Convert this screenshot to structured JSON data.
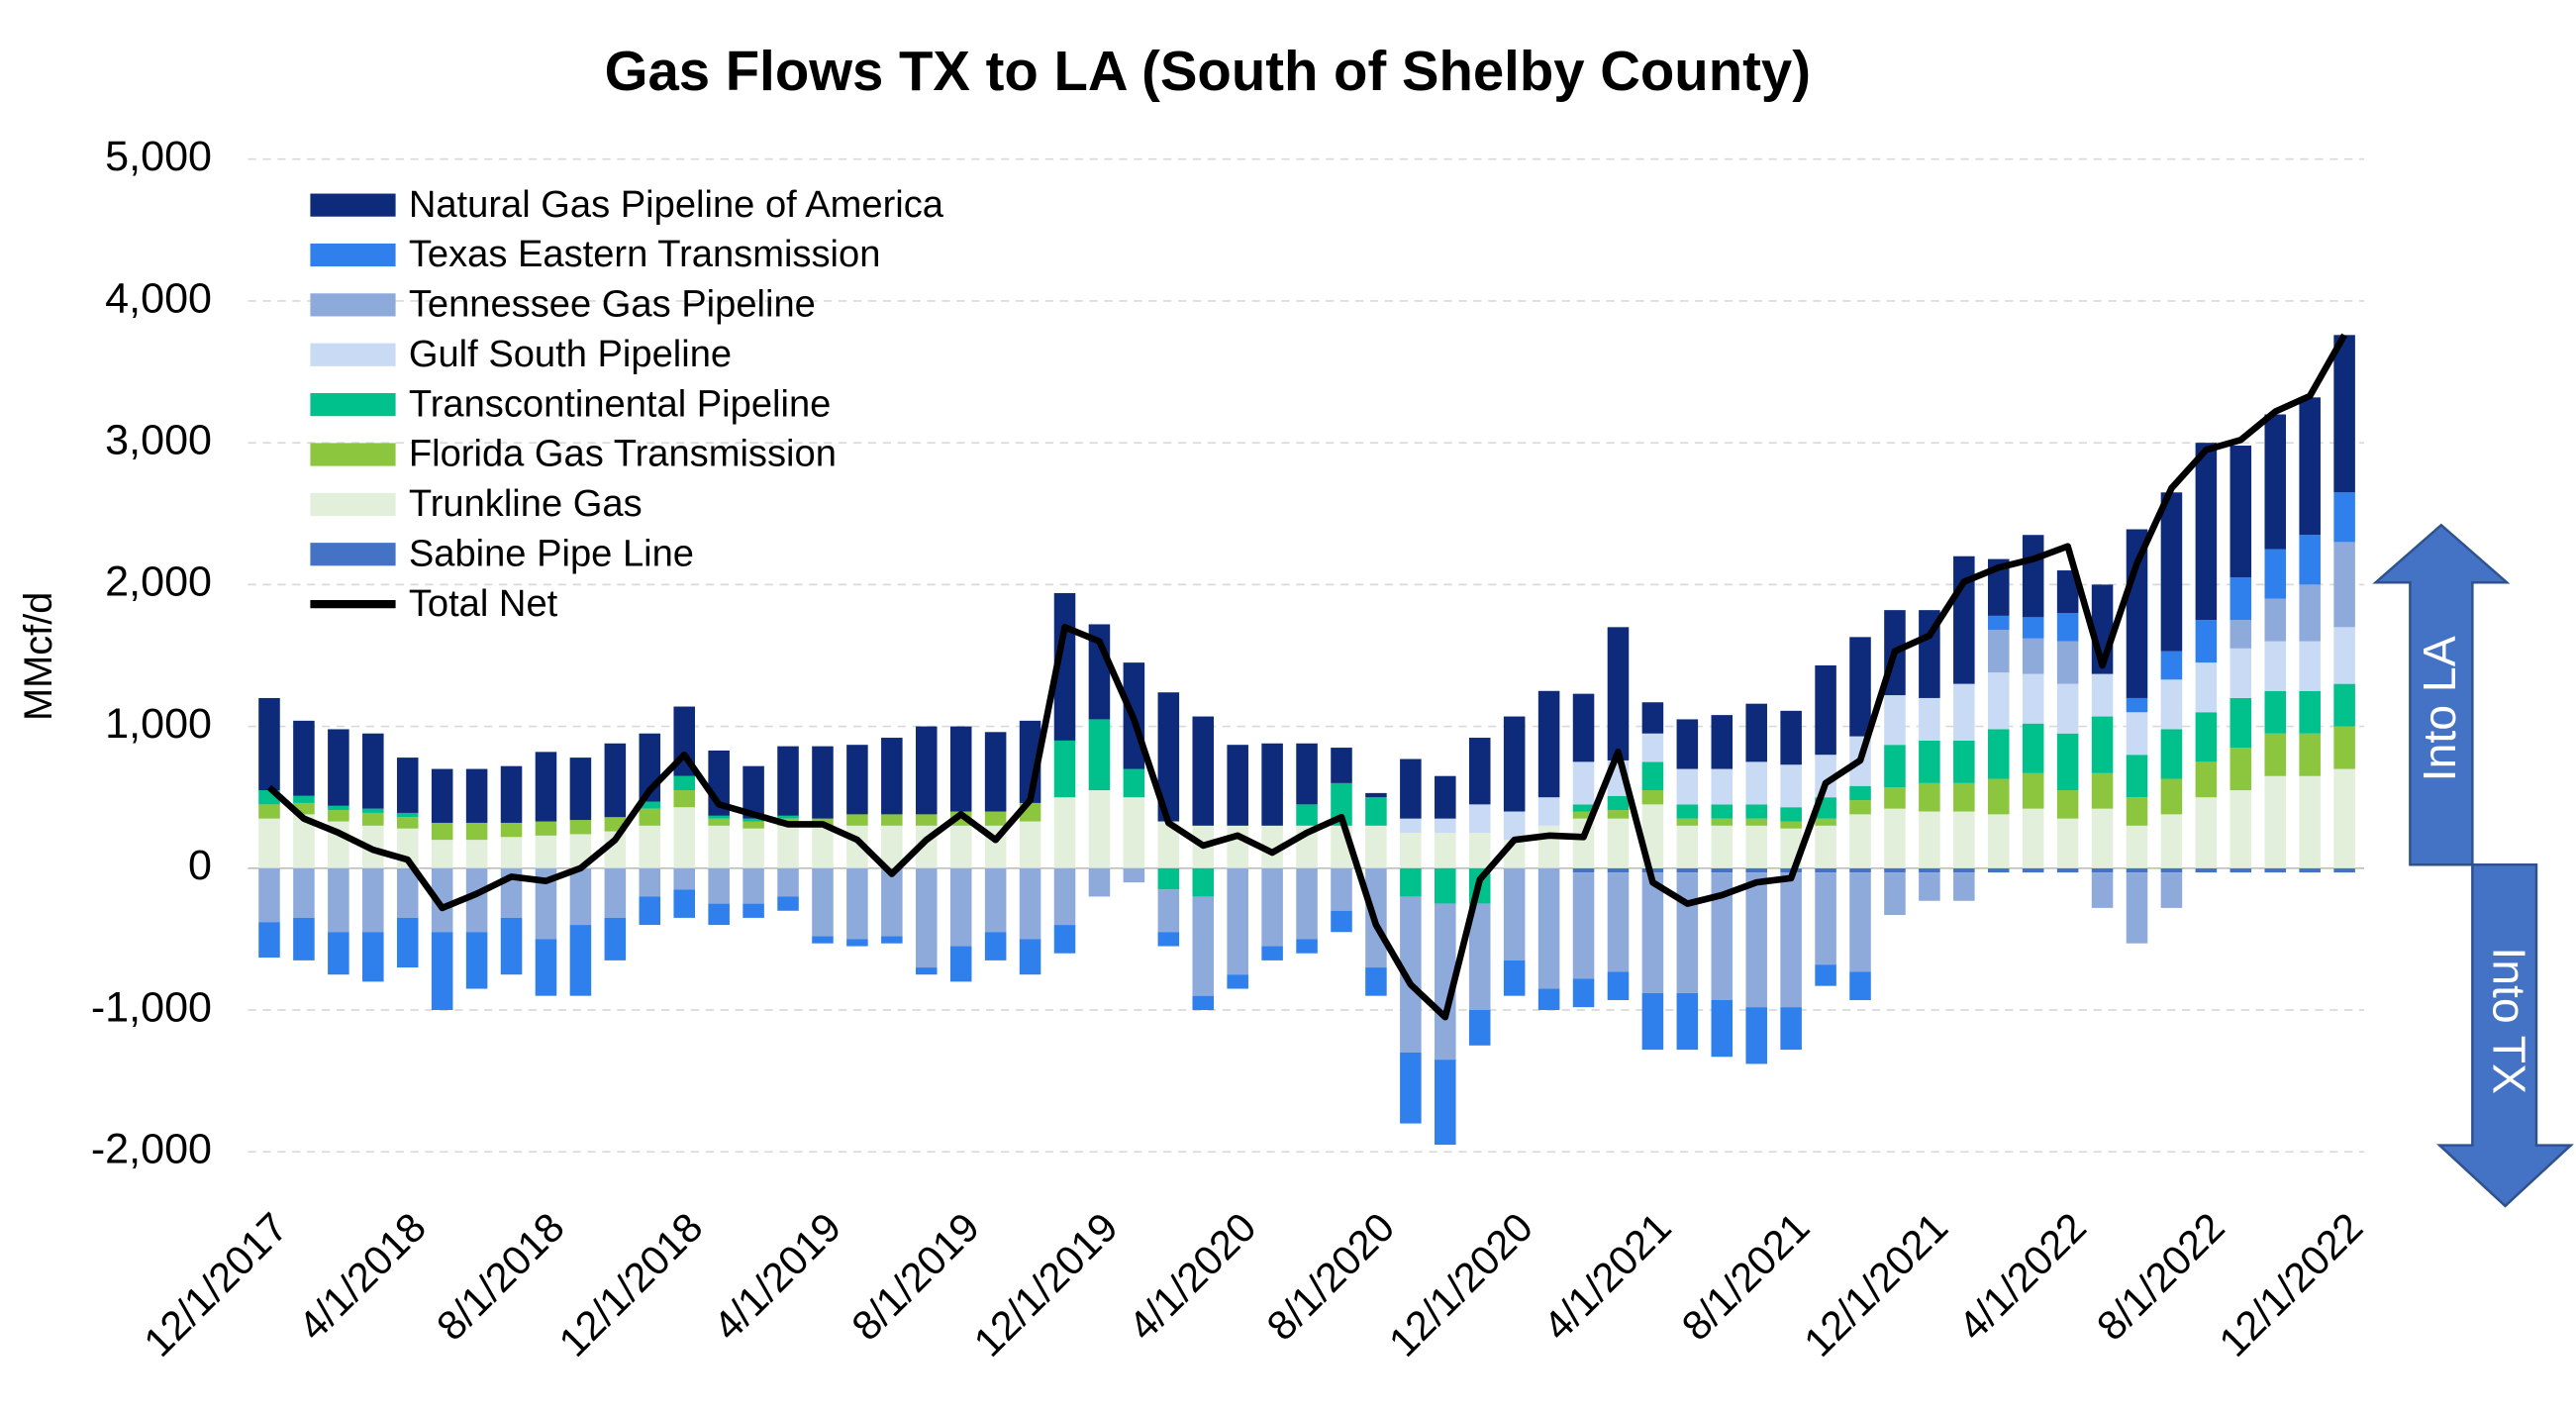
{
  "chart_data": {
    "type": "bar",
    "stacked": true,
    "title": "Gas Flows TX to LA (South of Shelby County)",
    "y_label": "MMcf/d",
    "annotations": [
      "Into LA",
      "Into TX"
    ],
    "categories": [
      "12/1/2017",
      null,
      null,
      null,
      "4/1/2018",
      null,
      null,
      null,
      "8/1/2018",
      null,
      null,
      null,
      "12/1/2018",
      null,
      null,
      null,
      "4/1/2019",
      null,
      null,
      null,
      "8/1/2019",
      null,
      null,
      null,
      "12/1/2019",
      null,
      null,
      null,
      "4/1/2020",
      null,
      null,
      null,
      "8/1/2020",
      null,
      null,
      null,
      "12/1/2020",
      null,
      null,
      null,
      "4/1/2021",
      null,
      null,
      null,
      "8/1/2021",
      null,
      null,
      null,
      "12/1/2021",
      null,
      null,
      null,
      "4/1/2022",
      null,
      null,
      null,
      "8/1/2022",
      null,
      null,
      null,
      "12/1/2022"
    ],
    "ylim": [
      -2000,
      5000
    ],
    "yticks": [
      {
        "value": 5000,
        "label": "5,000"
      },
      {
        "value": 4000,
        "label": "4,000"
      },
      {
        "value": 3000,
        "label": "3,000"
      },
      {
        "value": 2000,
        "label": "2,000"
      },
      {
        "value": 1000,
        "label": "1,000"
      },
      0,
      {
        "value": -1000,
        "label": "-1,000"
      },
      {
        "value": -2000,
        "label": "-2,000"
      }
    ],
    "grid": true,
    "legend": "top-left",
    "series": [
      {
        "name": "Natural Gas Pipeline of America",
        "color": "#0d2b7a",
        "values": [
          650,
          530,
          540,
          530,
          390,
          380,
          380,
          400,
          490,
          440,
          520,
          480,
          490,
          460,
          370,
          490,
          510,
          490,
          540,
          620,
          600,
          560,
          580,
          1040,
          670,
          750,
          910,
          770,
          570,
          580,
          430,
          250,
          30,
          420,
          300,
          470,
          670,
          750,
          480,
          940,
          220,
          350,
          380,
          410,
          380,
          630,
          700,
          600,
          620,
          900,
          400,
          580,
          300,
          630,
          1190,
          1120,
          1250,
          930,
          950,
          970,
          1110
        ]
      },
      {
        "name": "Texas Eastern Transmission",
        "color": "#2f80ed",
        "values": [
          -250,
          -300,
          -300,
          -350,
          -350,
          -550,
          -400,
          -400,
          -400,
          -500,
          -300,
          -200,
          -200,
          -150,
          -100,
          -100,
          -50,
          -50,
          -50,
          -50,
          -250,
          -200,
          -250,
          -200,
          0,
          0,
          -100,
          -100,
          -100,
          -100,
          -100,
          -150,
          -200,
          -500,
          -600,
          -250,
          -250,
          -150,
          -200,
          -200,
          -400,
          -400,
          -400,
          -400,
          -300,
          -150,
          -200,
          0,
          0,
          0,
          100,
          150,
          200,
          0,
          100,
          200,
          300,
          300,
          350,
          350,
          350
        ]
      },
      {
        "name": "Tennessee Gas Pipeline",
        "color": "#8eaadb",
        "values": [
          -380,
          -350,
          -450,
          -450,
          -350,
          -450,
          -450,
          -350,
          -500,
          -400,
          -350,
          -200,
          -150,
          -250,
          -250,
          -200,
          -480,
          -500,
          -480,
          -700,
          -550,
          -450,
          -500,
          -400,
          -200,
          -100,
          -300,
          -700,
          -750,
          -550,
          -500,
          -300,
          -700,
          -1100,
          -1100,
          -750,
          -650,
          -850,
          -750,
          -700,
          -850,
          -850,
          -900,
          -950,
          -950,
          -650,
          -700,
          -300,
          -200,
          -200,
          300,
          250,
          300,
          -250,
          -500,
          -250,
          0,
          200,
          300,
          400,
          600
        ]
      },
      {
        "name": "Gulf South Pipeline",
        "color": "#c9daf4",
        "values": [
          0,
          0,
          0,
          0,
          0,
          0,
          0,
          0,
          0,
          0,
          0,
          0,
          0,
          0,
          0,
          0,
          0,
          0,
          0,
          0,
          0,
          0,
          0,
          0,
          0,
          0,
          0,
          0,
          0,
          0,
          0,
          0,
          0,
          100,
          100,
          200,
          200,
          200,
          300,
          250,
          200,
          250,
          250,
          300,
          300,
          300,
          350,
          350,
          300,
          400,
          400,
          350,
          350,
          300,
          300,
          350,
          350,
          350,
          350,
          350,
          400
        ]
      },
      {
        "name": "Transcontinental Pipeline",
        "color": "#00c08b",
        "values": [
          100,
          50,
          30,
          30,
          30,
          0,
          0,
          0,
          0,
          0,
          0,
          50,
          100,
          20,
          20,
          20,
          0,
          0,
          0,
          0,
          0,
          0,
          0,
          400,
          500,
          200,
          -150,
          -200,
          0,
          0,
          150,
          300,
          200,
          -200,
          -250,
          -250,
          0,
          0,
          50,
          100,
          200,
          100,
          100,
          100,
          100,
          150,
          100,
          300,
          300,
          300,
          350,
          350,
          400,
          400,
          300,
          350,
          350,
          350,
          300,
          300,
          300
        ]
      },
      {
        "name": "Florida Gas Transmission",
        "color": "#8cc63f",
        "values": [
          100,
          80,
          80,
          90,
          80,
          120,
          120,
          100,
          100,
          100,
          100,
          120,
          120,
          50,
          50,
          50,
          50,
          80,
          80,
          80,
          100,
          100,
          130,
          0,
          0,
          0,
          0,
          0,
          0,
          0,
          0,
          0,
          0,
          0,
          0,
          0,
          0,
          0,
          50,
          60,
          100,
          50,
          50,
          50,
          50,
          50,
          100,
          150,
          200,
          200,
          250,
          250,
          200,
          250,
          200,
          250,
          250,
          300,
          300,
          300,
          300
        ]
      },
      {
        "name": "Trunkline Gas",
        "color": "#e2efda",
        "values": [
          350,
          380,
          330,
          300,
          280,
          200,
          200,
          220,
          230,
          240,
          260,
          300,
          430,
          300,
          280,
          300,
          300,
          300,
          300,
          300,
          300,
          300,
          330,
          500,
          550,
          500,
          330,
          300,
          300,
          300,
          300,
          300,
          300,
          250,
          250,
          250,
          200,
          300,
          350,
          350,
          450,
          300,
          300,
          300,
          280,
          300,
          380,
          420,
          400,
          400,
          380,
          420,
          350,
          420,
          300,
          380,
          500,
          550,
          650,
          650,
          700
        ]
      },
      {
        "name": "Sabine Pipe Line",
        "color": "#4472c4",
        "values": [
          0,
          0,
          0,
          0,
          0,
          0,
          0,
          0,
          0,
          0,
          0,
          0,
          0,
          0,
          0,
          0,
          0,
          0,
          0,
          0,
          0,
          0,
          0,
          0,
          0,
          0,
          0,
          0,
          0,
          0,
          0,
          0,
          0,
          0,
          0,
          0,
          0,
          0,
          -30,
          -30,
          -30,
          -30,
          -30,
          -30,
          -30,
          -30,
          -30,
          -30,
          -30,
          -30,
          -30,
          -30,
          -30,
          -30,
          -30,
          -30,
          -30,
          -30,
          -30,
          -30,
          -30
        ]
      },
      {
        "name": "Total Net",
        "type": "line",
        "color": "#000000",
        "values": [
          570,
          350,
          250,
          130,
          60,
          -280,
          -180,
          -60,
          -90,
          0,
          200,
          550,
          800,
          450,
          380,
          310,
          310,
          200,
          -40,
          200,
          380,
          200,
          480,
          1700,
          1600,
          1050,
          320,
          160,
          230,
          110,
          250,
          360,
          -400,
          -820,
          -1050,
          -80,
          200,
          230,
          220,
          820,
          -100,
          -250,
          -190,
          -100,
          -70,
          600,
          760,
          1530,
          1640,
          2020,
          2120,
          2180,
          2270,
          1430,
          2150,
          2680,
          2950,
          3020,
          3220,
          3330,
          3760
        ]
      }
    ]
  }
}
